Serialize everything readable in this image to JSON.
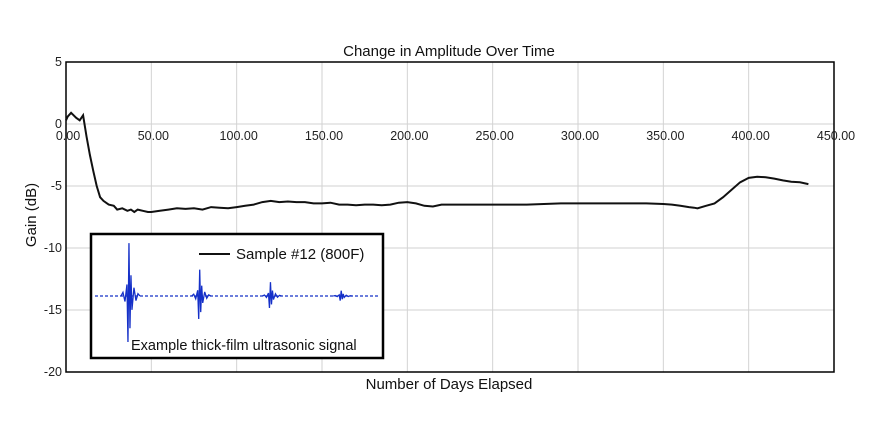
{
  "chart_data": {
    "type": "line",
    "title": "Change in Amplitude Over Time",
    "xlabel": "Number of Days Elapsed",
    "ylabel": "Gain (dB)",
    "xlim": [
      0,
      450
    ],
    "ylim": [
      -20,
      5
    ],
    "x_ticks": [
      "0.00",
      "50.00",
      "100.00",
      "150.00",
      "200.00",
      "250.00",
      "300.00",
      "350.00",
      "400.00",
      "450.00"
    ],
    "y_ticks": [
      "5",
      "0",
      "-5",
      "-10",
      "-15",
      "-20"
    ],
    "x_tick_axis_y": 0,
    "grid": true,
    "legend_position": "inset-left",
    "series": [
      {
        "name": "Sample #12 (800F)",
        "color": "#111111",
        "x": [
          0,
          1,
          3,
          6,
          8,
          10,
          12,
          14,
          16,
          18,
          20,
          22,
          25,
          28,
          30,
          33,
          36,
          38,
          40,
          42,
          45,
          48,
          50,
          55,
          60,
          65,
          70,
          75,
          80,
          85,
          90,
          95,
          100,
          105,
          110,
          115,
          120,
          125,
          130,
          135,
          140,
          145,
          150,
          155,
          160,
          165,
          170,
          175,
          180,
          185,
          190,
          195,
          200,
          205,
          210,
          215,
          220,
          225,
          230,
          240,
          250,
          260,
          270,
          280,
          290,
          300,
          310,
          320,
          330,
          340,
          350,
          355,
          360,
          365,
          368,
          370,
          375,
          380,
          385,
          390,
          395,
          400,
          405,
          410,
          415,
          420,
          425,
          430,
          435
        ],
        "y": [
          0.3,
          0.6,
          0.9,
          0.5,
          0.3,
          0.7,
          -1.0,
          -2.5,
          -3.8,
          -5.0,
          -5.9,
          -6.2,
          -6.5,
          -6.6,
          -6.9,
          -6.8,
          -7.0,
          -6.9,
          -7.1,
          -6.9,
          -7.0,
          -7.1,
          -7.1,
          -7.0,
          -6.9,
          -6.8,
          -6.85,
          -6.8,
          -6.9,
          -6.7,
          -6.75,
          -6.8,
          -6.7,
          -6.6,
          -6.5,
          -6.3,
          -6.2,
          -6.3,
          -6.25,
          -6.3,
          -6.3,
          -6.4,
          -6.4,
          -6.35,
          -6.5,
          -6.5,
          -6.55,
          -6.5,
          -6.5,
          -6.55,
          -6.5,
          -6.35,
          -6.3,
          -6.4,
          -6.6,
          -6.65,
          -6.5,
          -6.5,
          -6.5,
          -6.5,
          -6.5,
          -6.5,
          -6.5,
          -6.45,
          -6.4,
          -6.4,
          -6.4,
          -6.4,
          -6.4,
          -6.4,
          -6.45,
          -6.5,
          -6.6,
          -6.7,
          -6.75,
          -6.8,
          -6.6,
          -6.4,
          -5.9,
          -5.3,
          -4.7,
          -4.35,
          -4.25,
          -4.3,
          -4.4,
          -4.55,
          -4.65,
          -4.7,
          -4.85
        ]
      }
    ],
    "inset": {
      "caption": "Example thick-film ultrasonic signal",
      "signal_color": "#1530c8",
      "pulses": [
        {
          "position": 0.12,
          "amplitude": 1.0
        },
        {
          "position": 0.37,
          "amplitude": 0.5
        },
        {
          "position": 0.62,
          "amplitude": 0.26
        },
        {
          "position": 0.87,
          "amplitude": 0.1
        }
      ]
    }
  }
}
